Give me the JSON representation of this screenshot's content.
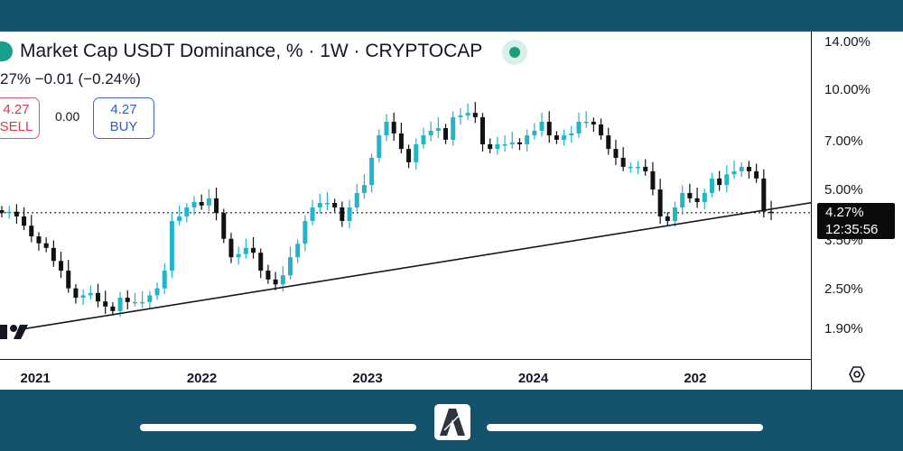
{
  "header": {
    "title": "Market Cap USDT Dominance, % · 1W · CRYPTOCAP",
    "price_line": "27%  −0.01 (−0.24%)",
    "sell_price": "4.27",
    "sell_label": "SELL",
    "spread": "0.00",
    "buy_price": "4.27",
    "buy_label": "BUY"
  },
  "last_price": {
    "value": "4.27%",
    "countdown": "12:35:56"
  },
  "colors": {
    "up": "#22b5c9",
    "down": "#111111",
    "frame": "#145369"
  },
  "chart_data": {
    "type": "candlestick",
    "title": "Market Cap USDT Dominance, % · 1W · CRYPTOCAP",
    "y_scale": "log",
    "ylim": [
      1.75,
      15
    ],
    "y_ticks": [
      "14.00%",
      "10.00%",
      "7.00%",
      "5.00%",
      "3.50%",
      "2.50%",
      "1.90%"
    ],
    "y_tick_values": [
      14,
      10,
      7,
      5,
      3.5,
      2.5,
      1.9
    ],
    "x_ticks": [
      "2021",
      "2022",
      "2023",
      "2024",
      "202"
    ],
    "x_tick_index": [
      4.7,
      27.2,
      49.6,
      72.0,
      94.4
    ],
    "closes": [
      4.26,
      4.3,
      4.16,
      3.9,
      3.62,
      3.45,
      3.34,
      3.05,
      2.85,
      2.52,
      2.36,
      2.4,
      2.44,
      2.3,
      2.22,
      2.15,
      2.36,
      2.29,
      2.29,
      2.29,
      2.4,
      2.52,
      2.85,
      4.03,
      4.16,
      4.43,
      4.6,
      4.49,
      4.72,
      4.26,
      3.56,
      3.13,
      3.2,
      3.34,
      3.23,
      2.85,
      2.68,
      2.59,
      2.76,
      3.13,
      3.44,
      4.03,
      4.43,
      4.57,
      4.57,
      4.43,
      4.03,
      4.43,
      4.9,
      5.18,
      6.26,
      7.32,
      8.05,
      7.42,
      6.66,
      6.07,
      6.88,
      7.32,
      7.56,
      7.7,
      7.1,
      8.31,
      8.41,
      8.57,
      8.31,
      6.88,
      6.66,
      6.88,
      6.88,
      6.97,
      6.88,
      7.32,
      7.56,
      8.05,
      7.32,
      7.1,
      7.32,
      7.42,
      8.05,
      8.05,
      7.9,
      7.32,
      6.66,
      6.26,
      5.88,
      5.88,
      5.88,
      5.7,
      5.02,
      4.16,
      4.03,
      4.43,
      4.9,
      4.72,
      4.6,
      4.9,
      5.42,
      5.18,
      5.58,
      5.7,
      5.88,
      5.7,
      5.42,
      4.3,
      4.27
    ],
    "trendline": {
      "from": {
        "index": 3,
        "value": 1.9
      },
      "to": {
        "index": 110,
        "value": 4.6
      }
    },
    "last_value": 4.27
  }
}
